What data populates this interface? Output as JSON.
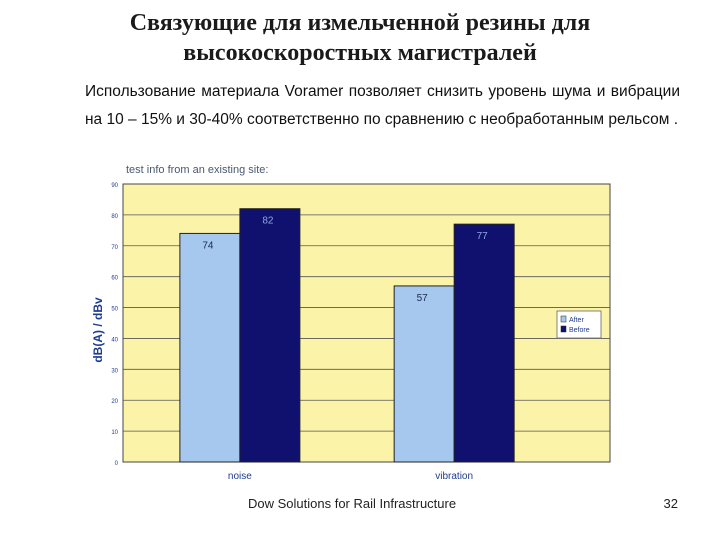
{
  "slide": {
    "title_lines": [
      "Связующие для измельченной резины для",
      "высокоскоростных магистралей"
    ],
    "paragraph": "Использование материала Voramer позволяет снизить уровень шума и вибрации на 10 – 15%  и 30-40% соответственно по сравнению с необработанным рельсом .",
    "footer": "Dow Solutions for Rail Infrastructure",
    "page_number": "32"
  },
  "colors": {
    "plot_background": "#fbf3a8",
    "after": "#a6c8ef",
    "before": "#10106e",
    "axis_text": "#1e3c90",
    "header_text": "#4a5870"
  },
  "chart_data": {
    "type": "bar",
    "title": "test info from an existing site:",
    "categories": [
      "noise",
      "vibration"
    ],
    "series": [
      {
        "name": "After",
        "values": [
          74,
          57
        ]
      },
      {
        "name": "Before",
        "values": [
          82,
          77
        ]
      }
    ],
    "ylabel": "dB(A) / dBv",
    "xlabel": "",
    "ylim": [
      0,
      90
    ],
    "yticks": [
      0,
      10,
      20,
      30,
      40,
      50,
      60,
      70,
      80,
      90
    ],
    "grid": true,
    "legend": "right"
  }
}
